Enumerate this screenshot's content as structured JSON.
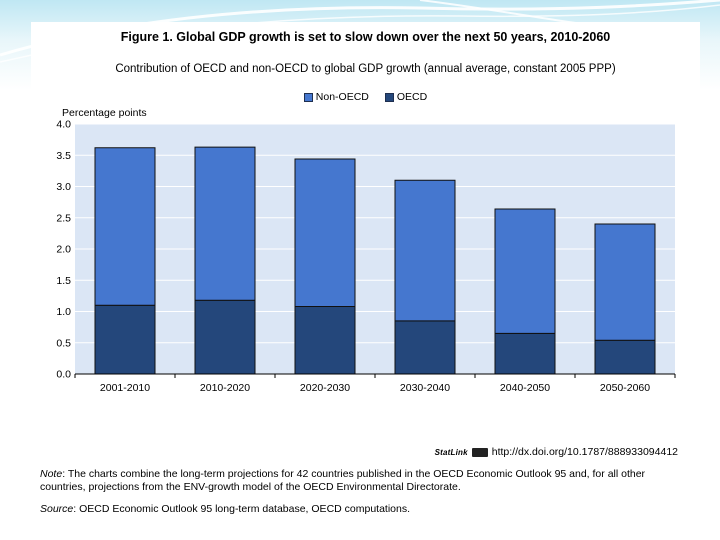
{
  "figure": {
    "title": "Figure 1.  Global GDP growth is set to slow down over the next 50 years, 2010-2060",
    "subtitle": "Contribution of OECD and non-OECD to global GDP growth (annual average, constant 2005 PPP)",
    "statlink_logo": "StatLink",
    "statlink_url": "http://dx.doi.org/10.1787/888933094412",
    "note_label": "Note",
    "note_text": ": The charts combine the long-term projections for 42 countries published in the OECD Economic Outlook 95 and, for all other countries, projections from the ENV-growth model of the OECD Environmental Directorate.",
    "source_label": "Source",
    "source_text": ": OECD Economic Outlook 95 long-term database, OECD computations."
  },
  "chart_data": {
    "type": "bar",
    "stacked": true,
    "title": "Figure 1.  Global GDP growth is set to slow down over the next 50 years, 2010-2060",
    "ylabel": "Percentage points",
    "xlabel": "",
    "ylim": [
      0,
      4.0
    ],
    "yticks": [
      "0.0",
      "0.5",
      "1.0",
      "1.5",
      "2.0",
      "2.5",
      "3.0",
      "3.5",
      "4.0"
    ],
    "grid": true,
    "legend_position": "top-center",
    "categories": [
      "2001-2010",
      "2010-2020",
      "2020-2030",
      "2030-2040",
      "2040-2050",
      "2050-2060"
    ],
    "series": [
      {
        "name": "OECD",
        "color": "#24477b",
        "values": [
          1.1,
          1.18,
          1.08,
          0.85,
          0.65,
          0.54
        ]
      },
      {
        "name": "Non-OECD",
        "color": "#4577cf",
        "values": [
          2.52,
          2.45,
          2.36,
          2.25,
          1.99,
          1.86
        ]
      }
    ],
    "legend_order": [
      "Non-OECD",
      "OECD"
    ],
    "plot_background": "#dbe6f5"
  }
}
